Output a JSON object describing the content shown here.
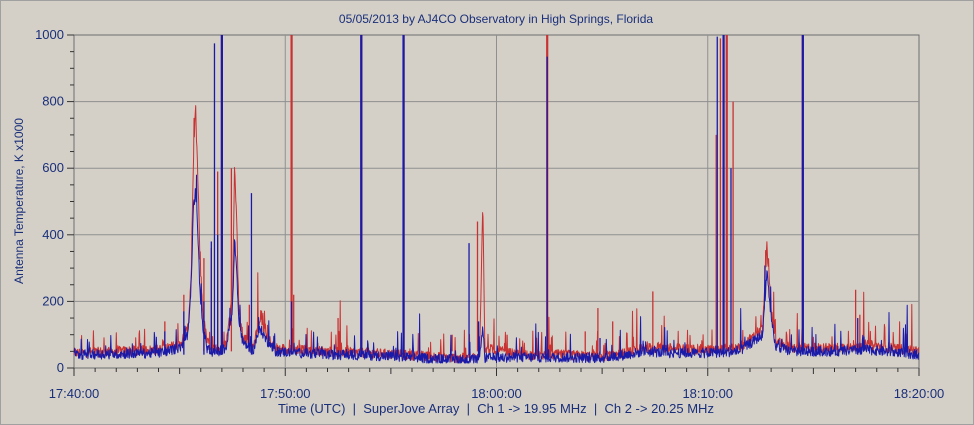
{
  "chart_data": {
    "type": "line",
    "title": "05/05/2013  by  AJ4CO Observatory  in  High Springs, Florida",
    "xlabel": "Time (UTC)  |  SuperJove Array  |  Ch 1 -> 19.95 MHz  |  Ch 2 -> 20.25 MHz",
    "ylabel": "Antenna Temperature, K x1000",
    "xlim": [
      "17:40:00",
      "18:20:00"
    ],
    "ylim": [
      0,
      1000
    ],
    "x_ticks": [
      "17:40:00",
      "17:50:00",
      "18:00:00",
      "18:10:00",
      "18:20:00"
    ],
    "y_ticks": [
      0,
      200,
      400,
      600,
      800,
      1000
    ],
    "grid": true,
    "x_unit": "minutes after 17:40:00",
    "series": [
      {
        "name": "Ch 1 -> 19.95 MHz",
        "color": "#c83232",
        "baseline": 50,
        "points": [
          [
            0,
            45
          ],
          [
            4.0,
            55
          ],
          [
            5.0,
            70
          ],
          [
            5.4,
            120
          ],
          [
            5.55,
            280
          ],
          [
            5.65,
            620
          ],
          [
            5.75,
            770
          ],
          [
            5.85,
            600
          ],
          [
            5.95,
            350
          ],
          [
            6.1,
            160
          ],
          [
            6.3,
            80
          ],
          [
            6.6,
            55
          ],
          [
            7.2,
            70
          ],
          [
            7.5,
            220
          ],
          [
            7.6,
            600
          ],
          [
            7.7,
            450
          ],
          [
            7.8,
            180
          ],
          [
            8.0,
            90
          ],
          [
            8.5,
            70
          ],
          [
            8.8,
            150
          ],
          [
            9.1,
            100
          ],
          [
            9.5,
            60
          ],
          [
            12,
            50
          ],
          [
            14,
            45
          ],
          [
            17,
            35
          ],
          [
            18,
            30
          ],
          [
            19.2,
            30
          ],
          [
            19.35,
            510
          ],
          [
            19.45,
            60
          ],
          [
            21,
            40
          ],
          [
            23,
            40
          ],
          [
            25,
            35
          ],
          [
            26.2,
            45
          ],
          [
            27.0,
            60
          ],
          [
            28,
            60
          ],
          [
            30,
            55
          ],
          [
            31.5,
            60
          ],
          [
            32.6,
            120
          ],
          [
            32.8,
            365
          ],
          [
            33.0,
            180
          ],
          [
            33.2,
            80
          ],
          [
            34,
            60
          ],
          [
            36,
            60
          ],
          [
            37.5,
            70
          ],
          [
            40,
            50
          ]
        ],
        "spikes": [
          [
            4.3,
            140
          ],
          [
            5.2,
            220
          ],
          [
            6.15,
            330
          ],
          [
            6.5,
            360
          ],
          [
            6.8,
            590
          ],
          [
            7.0,
            1000
          ],
          [
            7.45,
            600
          ],
          [
            8.3,
            190
          ],
          [
            10.3,
            1000
          ],
          [
            10.4,
            220
          ],
          [
            12.5,
            150
          ],
          [
            13.6,
            1000
          ],
          [
            15.6,
            1000
          ],
          [
            17.9,
            100
          ],
          [
            19.1,
            440
          ],
          [
            20.5,
            100
          ],
          [
            22.4,
            1000
          ],
          [
            24.2,
            110
          ],
          [
            24.8,
            180
          ],
          [
            25.5,
            140
          ],
          [
            27.4,
            230
          ],
          [
            30.4,
            700
          ],
          [
            30.6,
            990
          ],
          [
            30.9,
            1000
          ],
          [
            31.2,
            800
          ],
          [
            34.5,
            1000
          ],
          [
            37.0,
            235
          ],
          [
            37.2,
            160
          ]
        ]
      },
      {
        "name": "Ch 2 -> 20.25 MHz",
        "color": "#1a1aa8",
        "baseline": 40,
        "points": [
          [
            0,
            40
          ],
          [
            4.0,
            45
          ],
          [
            5.0,
            60
          ],
          [
            5.4,
            100
          ],
          [
            5.55,
            250
          ],
          [
            5.65,
            480
          ],
          [
            5.75,
            530
          ],
          [
            5.85,
            430
          ],
          [
            5.95,
            250
          ],
          [
            6.1,
            120
          ],
          [
            6.3,
            60
          ],
          [
            6.6,
            45
          ],
          [
            7.2,
            60
          ],
          [
            7.5,
            180
          ],
          [
            7.6,
            380
          ],
          [
            7.7,
            300
          ],
          [
            7.8,
            140
          ],
          [
            8.0,
            75
          ],
          [
            8.5,
            55
          ],
          [
            8.8,
            120
          ],
          [
            9.1,
            85
          ],
          [
            9.5,
            50
          ],
          [
            12,
            40
          ],
          [
            14,
            38
          ],
          [
            17,
            28
          ],
          [
            18,
            25
          ],
          [
            19.2,
            25
          ],
          [
            19.35,
            120
          ],
          [
            19.45,
            30
          ],
          [
            21,
            32
          ],
          [
            23,
            32
          ],
          [
            25,
            30
          ],
          [
            26.2,
            40
          ],
          [
            27.0,
            50
          ],
          [
            28,
            45
          ],
          [
            30,
            45
          ],
          [
            31.5,
            50
          ],
          [
            32.6,
            100
          ],
          [
            32.8,
            295
          ],
          [
            33.0,
            150
          ],
          [
            33.2,
            65
          ],
          [
            34,
            50
          ],
          [
            36,
            50
          ],
          [
            37.5,
            55
          ],
          [
            40,
            40
          ]
        ],
        "spikes": [
          [
            4.3,
            110
          ],
          [
            5.2,
            170
          ],
          [
            6.15,
            200
          ],
          [
            6.5,
            380
          ],
          [
            6.65,
            975
          ],
          [
            6.8,
            400
          ],
          [
            7.0,
            1000
          ],
          [
            8.4,
            525
          ],
          [
            10.3,
            200
          ],
          [
            13.6,
            1000
          ],
          [
            15.6,
            1000
          ],
          [
            18.7,
            375
          ],
          [
            19.15,
            140
          ],
          [
            22.4,
            935
          ],
          [
            24.9,
            90
          ],
          [
            30.45,
            995
          ],
          [
            30.75,
            1000
          ],
          [
            31.1,
            600
          ],
          [
            34.5,
            1000
          ],
          [
            37.1,
            150
          ]
        ]
      }
    ]
  }
}
